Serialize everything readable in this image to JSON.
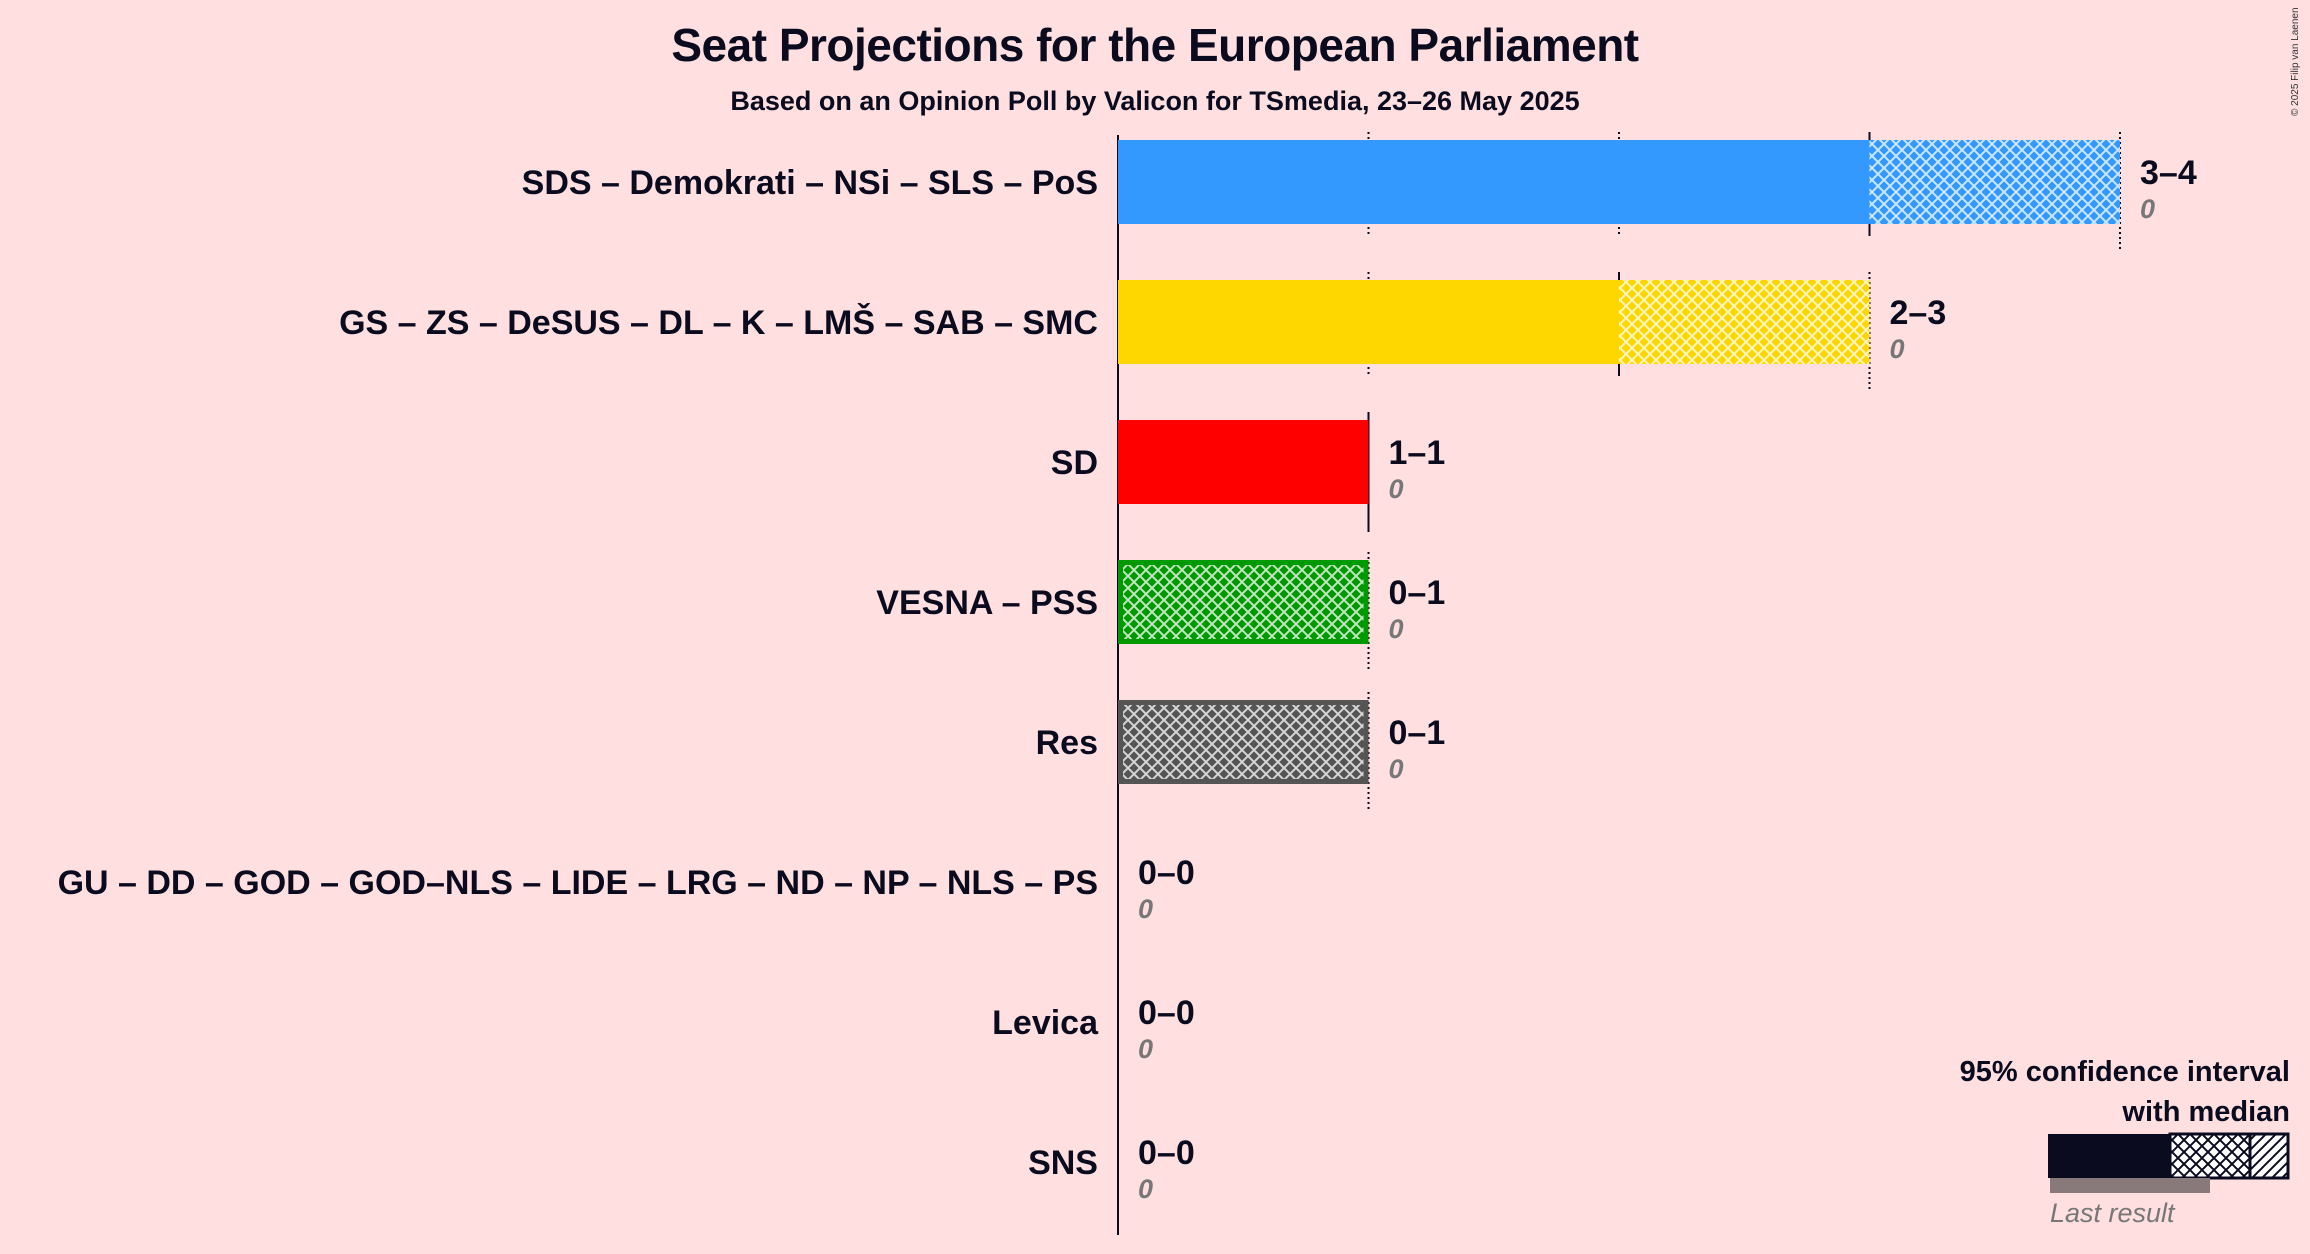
{
  "title": "Seat Projections for the European Parliament",
  "subtitle": "Based on an Opinion Poll by Valicon for TSmedia, 23–26 May 2025",
  "copyright": "© 2025 Filip van Laenen",
  "legend": {
    "title_line1": "95% confidence interval",
    "title_line2": "with median",
    "last_result": "Last result"
  },
  "chart_data": {
    "type": "bar",
    "title": "Seat Projections for the European Parliament",
    "subtitle": "Based on an Opinion Poll by Valicon for TSmedia, 23–26 May 2025",
    "xlim": [
      0,
      4
    ],
    "grid": true,
    "legend_position": "bottom-right",
    "categories": [
      "SDS – Demokrati – NSi – SLS – PoS",
      "GS – ZS – DeSUS – DL – K – LMŠ – SAB – SMC",
      "SD",
      "VESNA – PSS",
      "Res",
      "GU – DD – GOD – GOD–NLS – LIDE – LRG – ND – NP – NLS – PS",
      "Levica",
      "SNS"
    ],
    "series": [
      {
        "low": [
          3,
          2,
          1,
          0,
          0,
          0,
          0,
          0
        ],
        "median": [
          3,
          2,
          1,
          0,
          0,
          0,
          0,
          0
        ],
        "high": [
          4,
          3,
          1,
          1,
          1,
          0,
          0,
          0
        ],
        "last_result": [
          0,
          0,
          0,
          0,
          0,
          0,
          0,
          0
        ]
      }
    ],
    "range_labels": [
      "3–4",
      "2–3",
      "1–1",
      "0–1",
      "0–1",
      "0–0",
      "0–0",
      "0–0"
    ],
    "last_labels": [
      "0",
      "0",
      "0",
      "0",
      "0",
      "0",
      "0",
      "0"
    ],
    "colors": [
      "#3399FF",
      "#FFD700",
      "#FF0000",
      "#009900",
      "#555555",
      "#555555",
      "#555555",
      "#555555"
    ]
  }
}
